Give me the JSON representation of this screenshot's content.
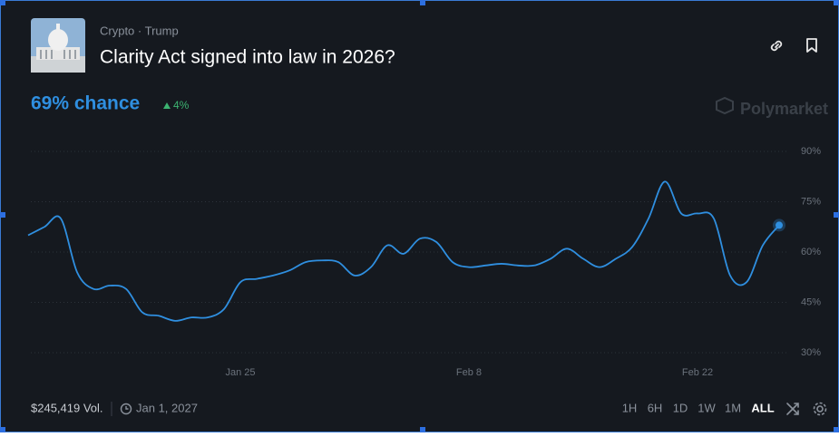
{
  "header": {
    "breadcrumb": "Crypto · Trump",
    "title": "Clarity Act signed into law in 2026?",
    "chance": "69% chance",
    "change": "4%",
    "watermark": "Polymarket"
  },
  "footer": {
    "volume": "$245,419 Vol.",
    "end_date": "Jan 1, 2027",
    "ranges": [
      "1H",
      "6H",
      "1D",
      "1W",
      "1M",
      "ALL"
    ],
    "active_range": 5
  },
  "chart_data": {
    "type": "line",
    "x": [
      "Jan 12",
      "Jan 13",
      "Jan 14",
      "Jan 15",
      "Jan 16",
      "Jan 17",
      "Jan 18",
      "Jan 19",
      "Jan 20",
      "Jan 21",
      "Jan 22",
      "Jan 23",
      "Jan 24",
      "Jan 25",
      "Jan 26",
      "Jan 27",
      "Jan 28",
      "Jan 29",
      "Jan 30",
      "Jan 31",
      "Feb 1",
      "Feb 2",
      "Feb 3",
      "Feb 4",
      "Feb 5",
      "Feb 6",
      "Feb 7",
      "Feb 8",
      "Feb 9",
      "Feb 10",
      "Feb 11",
      "Feb 12",
      "Feb 13",
      "Feb 14",
      "Feb 15",
      "Feb 16",
      "Feb 17",
      "Feb 18",
      "Feb 19",
      "Feb 20",
      "Feb 21",
      "Feb 22",
      "Feb 23",
      "Feb 24",
      "Feb 25",
      "Feb 26",
      "Feb 27"
    ],
    "values": [
      65,
      67.5,
      70,
      54,
      49,
      50,
      49,
      42,
      41,
      39.5,
      40.5,
      40.5,
      43,
      51,
      52,
      53,
      54.5,
      57,
      57.5,
      57,
      53,
      55.5,
      62,
      59.5,
      64,
      63,
      57,
      55.5,
      56,
      56.5,
      56,
      56,
      58,
      61,
      58,
      55.5,
      58,
      61.5,
      70,
      81,
      71.5,
      71.5,
      70,
      53,
      51,
      62,
      68
    ],
    "color": "#2f8fe0",
    "xticks": [
      "Jan 25",
      "Feb 8",
      "Feb 22"
    ],
    "ylim": [
      30,
      90
    ],
    "yticks": [
      {
        "value": 30,
        "label": "30%"
      },
      {
        "value": 45,
        "label": "45%"
      },
      {
        "value": 60,
        "label": "60%"
      },
      {
        "value": 75,
        "label": "75%"
      },
      {
        "value": 90,
        "label": "90%"
      }
    ],
    "grid": true
  }
}
